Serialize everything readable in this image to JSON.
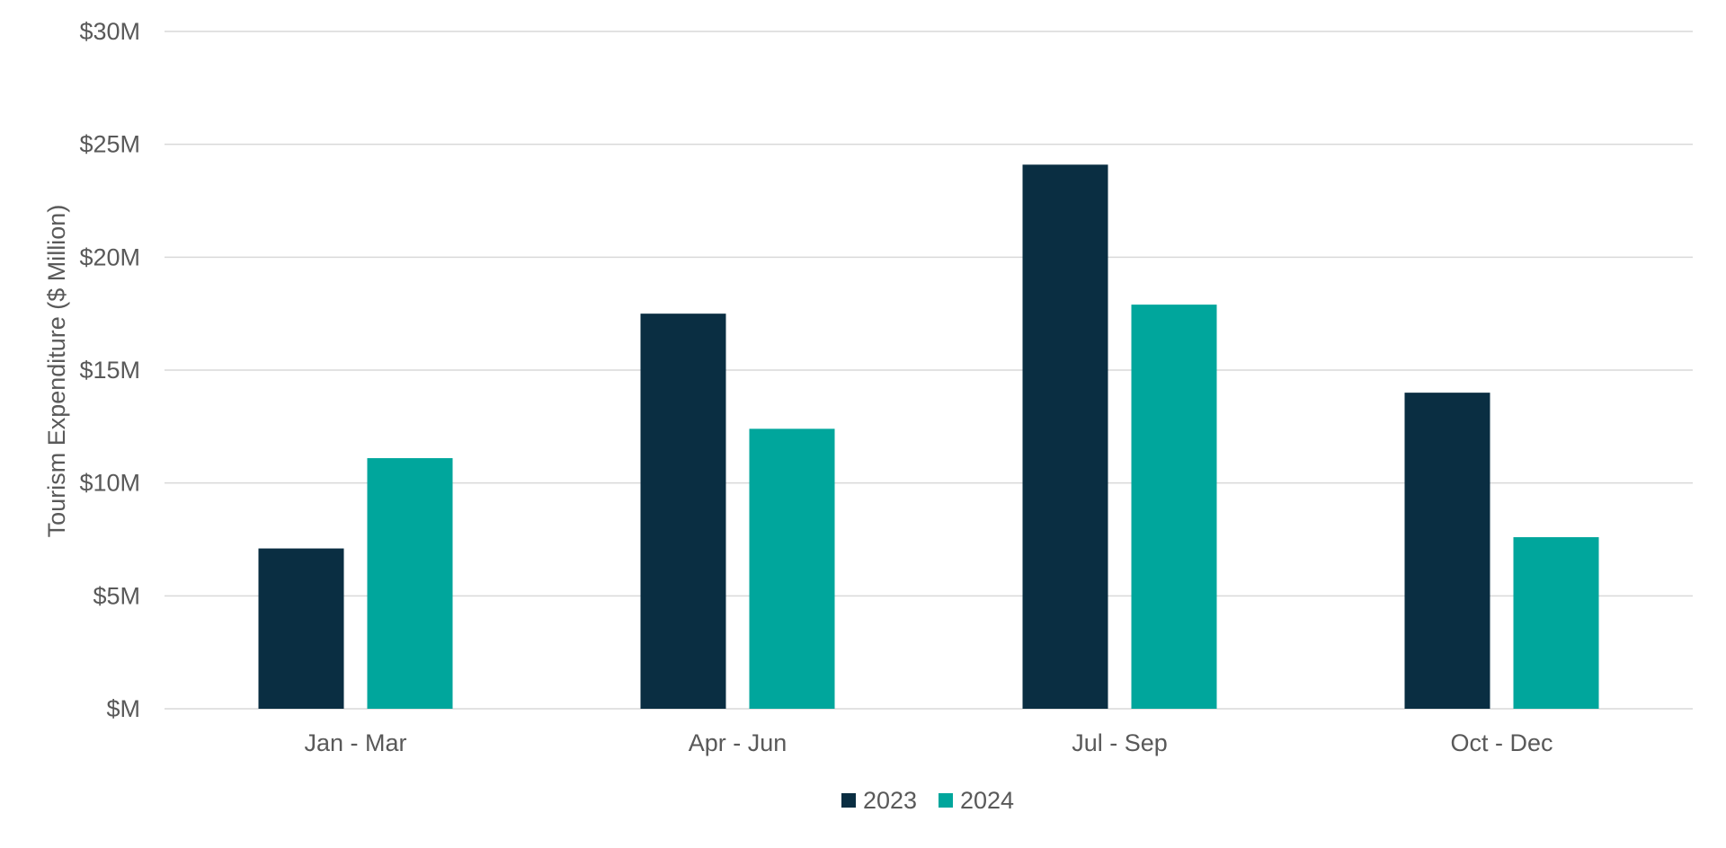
{
  "chart_data": {
    "type": "bar",
    "title": "",
    "xlabel": "",
    "ylabel": "Tourism Expenditure ($ Million)",
    "ylim": [
      0,
      30
    ],
    "yticks": [
      0,
      5,
      10,
      15,
      20,
      25,
      30
    ],
    "ytick_labels": [
      "$M",
      "$5M",
      "$10M",
      "$15M",
      "$20M",
      "$25M",
      "$30M"
    ],
    "grid": true,
    "legend_position": "bottom",
    "categories": [
      "Jan - Mar",
      "Apr - Jun",
      "Jul - Sep",
      "Oct - Dec"
    ],
    "series": [
      {
        "name": "2023",
        "color": "#0a2e42",
        "values": [
          7.1,
          17.5,
          24.1,
          14.0
        ]
      },
      {
        "name": "2024",
        "color": "#00a69c",
        "values": [
          11.1,
          12.4,
          17.9,
          7.6
        ]
      }
    ],
    "gridline_color": "#d9d9d9",
    "text_color": "#595959"
  }
}
